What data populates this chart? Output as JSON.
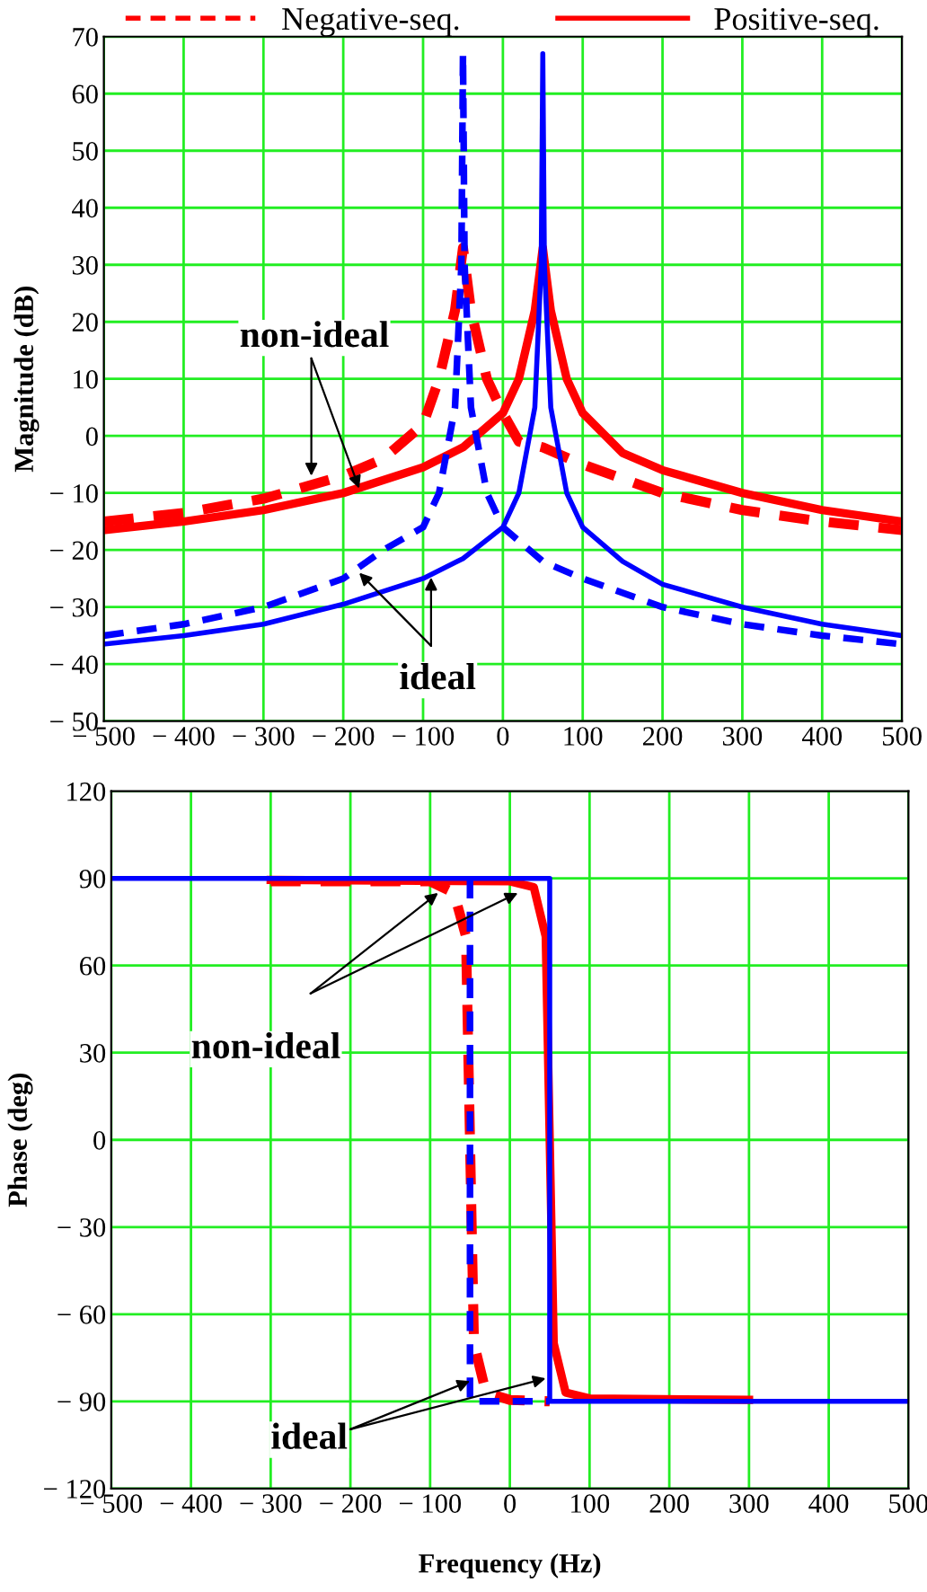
{
  "chart_data": [
    {
      "type": "line",
      "ylabel": "Magnitude (dB)",
      "xlim": [
        -500,
        500
      ],
      "ylim": [
        -50,
        70
      ],
      "xticks": [
        {
          "value": -500,
          "label": "− 500"
        },
        {
          "value": -400,
          "label": "− 400"
        },
        {
          "value": -300,
          "label": "− 300"
        },
        {
          "value": -200,
          "label": "− 200"
        },
        {
          "value": -100,
          "label": "− 100"
        },
        0,
        100,
        200,
        300,
        400,
        500
      ],
      "yticks": [
        {
          "value": -50,
          "label": "− 50"
        },
        {
          "value": -40,
          "label": "− 40"
        },
        {
          "value": -30,
          "label": "− 30"
        },
        {
          "value": -20,
          "label": "− 20"
        },
        {
          "value": -10,
          "label": "− 10"
        },
        0,
        10,
        20,
        30,
        40,
        50,
        60,
        70
      ],
      "grid": true,
      "legend": "top",
      "annotations": [
        {
          "text": "non-ideal",
          "x": -240,
          "y": -7
        },
        {
          "text": "ideal",
          "x": -180,
          "y": -24
        }
      ],
      "series": [
        {
          "name": "Negative-seq.",
          "color": "#ff0000",
          "line_style": "dashed",
          "x": [
            -500,
            -400,
            -300,
            -200,
            -150,
            -100,
            -80,
            -60,
            -50,
            -40,
            -20,
            0,
            20,
            50,
            100,
            200,
            300,
            400,
            500
          ],
          "values": [
            -15,
            -13.5,
            -11,
            -7,
            -4,
            2,
            10,
            22,
            33,
            22,
            10,
            4,
            -1,
            -2,
            -5,
            -10,
            -13,
            -15,
            -16.5
          ]
        },
        {
          "name": "Positive-seq.",
          "color": "#ff0000",
          "line_style": "solid",
          "x": [
            -500,
            -400,
            -300,
            -200,
            -100,
            -50,
            0,
            20,
            40,
            50,
            60,
            80,
            100,
            150,
            200,
            300,
            400,
            500
          ],
          "values": [
            -16.5,
            -15,
            -13,
            -10,
            -5.5,
            -2,
            4,
            10,
            22,
            33,
            22,
            10,
            4,
            -3,
            -6,
            -10,
            -13,
            -15
          ]
        },
        {
          "color": "#0000ff",
          "line_style": "dashed",
          "x": [
            -500,
            -400,
            -300,
            -200,
            -150,
            -100,
            -80,
            -60,
            -52,
            -50,
            -48,
            -40,
            -20,
            0,
            50,
            100,
            200,
            300,
            400,
            500
          ],
          "values": [
            -35,
            -33,
            -30,
            -25,
            -20,
            -16,
            -10,
            5,
            30,
            67,
            30,
            5,
            -10,
            -16,
            -22,
            -25,
            -30,
            -33,
            -35,
            -36.5
          ]
        },
        {
          "color": "#0000ff",
          "line_style": "solid",
          "x": [
            -500,
            -400,
            -300,
            -200,
            -100,
            -50,
            0,
            20,
            40,
            48,
            50,
            52,
            60,
            80,
            100,
            150,
            200,
            300,
            400,
            500
          ],
          "values": [
            -36.5,
            -35,
            -33,
            -29.5,
            -25,
            -21.5,
            -16,
            -10,
            5,
            30,
            67,
            30,
            5,
            -10,
            -16,
            -22,
            -26,
            -30,
            -33,
            -35
          ]
        }
      ]
    },
    {
      "type": "line",
      "ylabel": "Phase (deg)",
      "xlabel": "Frequency (Hz)",
      "xlim": [
        -500,
        500
      ],
      "ylim": [
        -120,
        120
      ],
      "xticks": [
        {
          "value": -500,
          "label": "− 500"
        },
        {
          "value": -400,
          "label": "− 400"
        },
        {
          "value": -300,
          "label": "− 300"
        },
        {
          "value": -200,
          "label": "− 200"
        },
        {
          "value": -100,
          "label": "− 100"
        },
        0,
        100,
        200,
        300,
        400,
        500
      ],
      "yticks": [
        {
          "value": -120,
          "label": "− 120"
        },
        {
          "value": -90,
          "label": "− 90"
        },
        {
          "value": -60,
          "label": "− 60"
        },
        {
          "value": -30,
          "label": "− 30"
        },
        0,
        30,
        60,
        90,
        120
      ],
      "grid": true,
      "annotations": [
        {
          "text": "non-ideal",
          "x": -90,
          "y": 85
        },
        {
          "text": "ideal",
          "x": -50,
          "y": -83
        }
      ],
      "series": [
        {
          "color": "#ff0000",
          "line_style": "dashed",
          "x": [
            -300,
            -100,
            -70,
            -55,
            -50,
            -45,
            -30,
            0,
            50
          ],
          "values": [
            89,
            89,
            85,
            70,
            0,
            -70,
            -87,
            -89.5,
            -90
          ]
        },
        {
          "color": "#ff0000",
          "line_style": "solid",
          "x": [
            -300,
            0,
            30,
            45,
            50,
            55,
            70,
            100,
            300
          ],
          "values": [
            89.5,
            89,
            87,
            70,
            0,
            -70,
            -87,
            -89,
            -89.5
          ]
        },
        {
          "color": "#0000ff",
          "line_style": "dashed",
          "x": [
            -50,
            -50,
            50
          ],
          "values": [
            90,
            -90,
            -90
          ]
        },
        {
          "color": "#0000ff",
          "line_style": "solid",
          "x": [
            -500,
            50,
            50,
            500
          ],
          "values": [
            90,
            90,
            -90,
            -90
          ]
        }
      ]
    }
  ]
}
